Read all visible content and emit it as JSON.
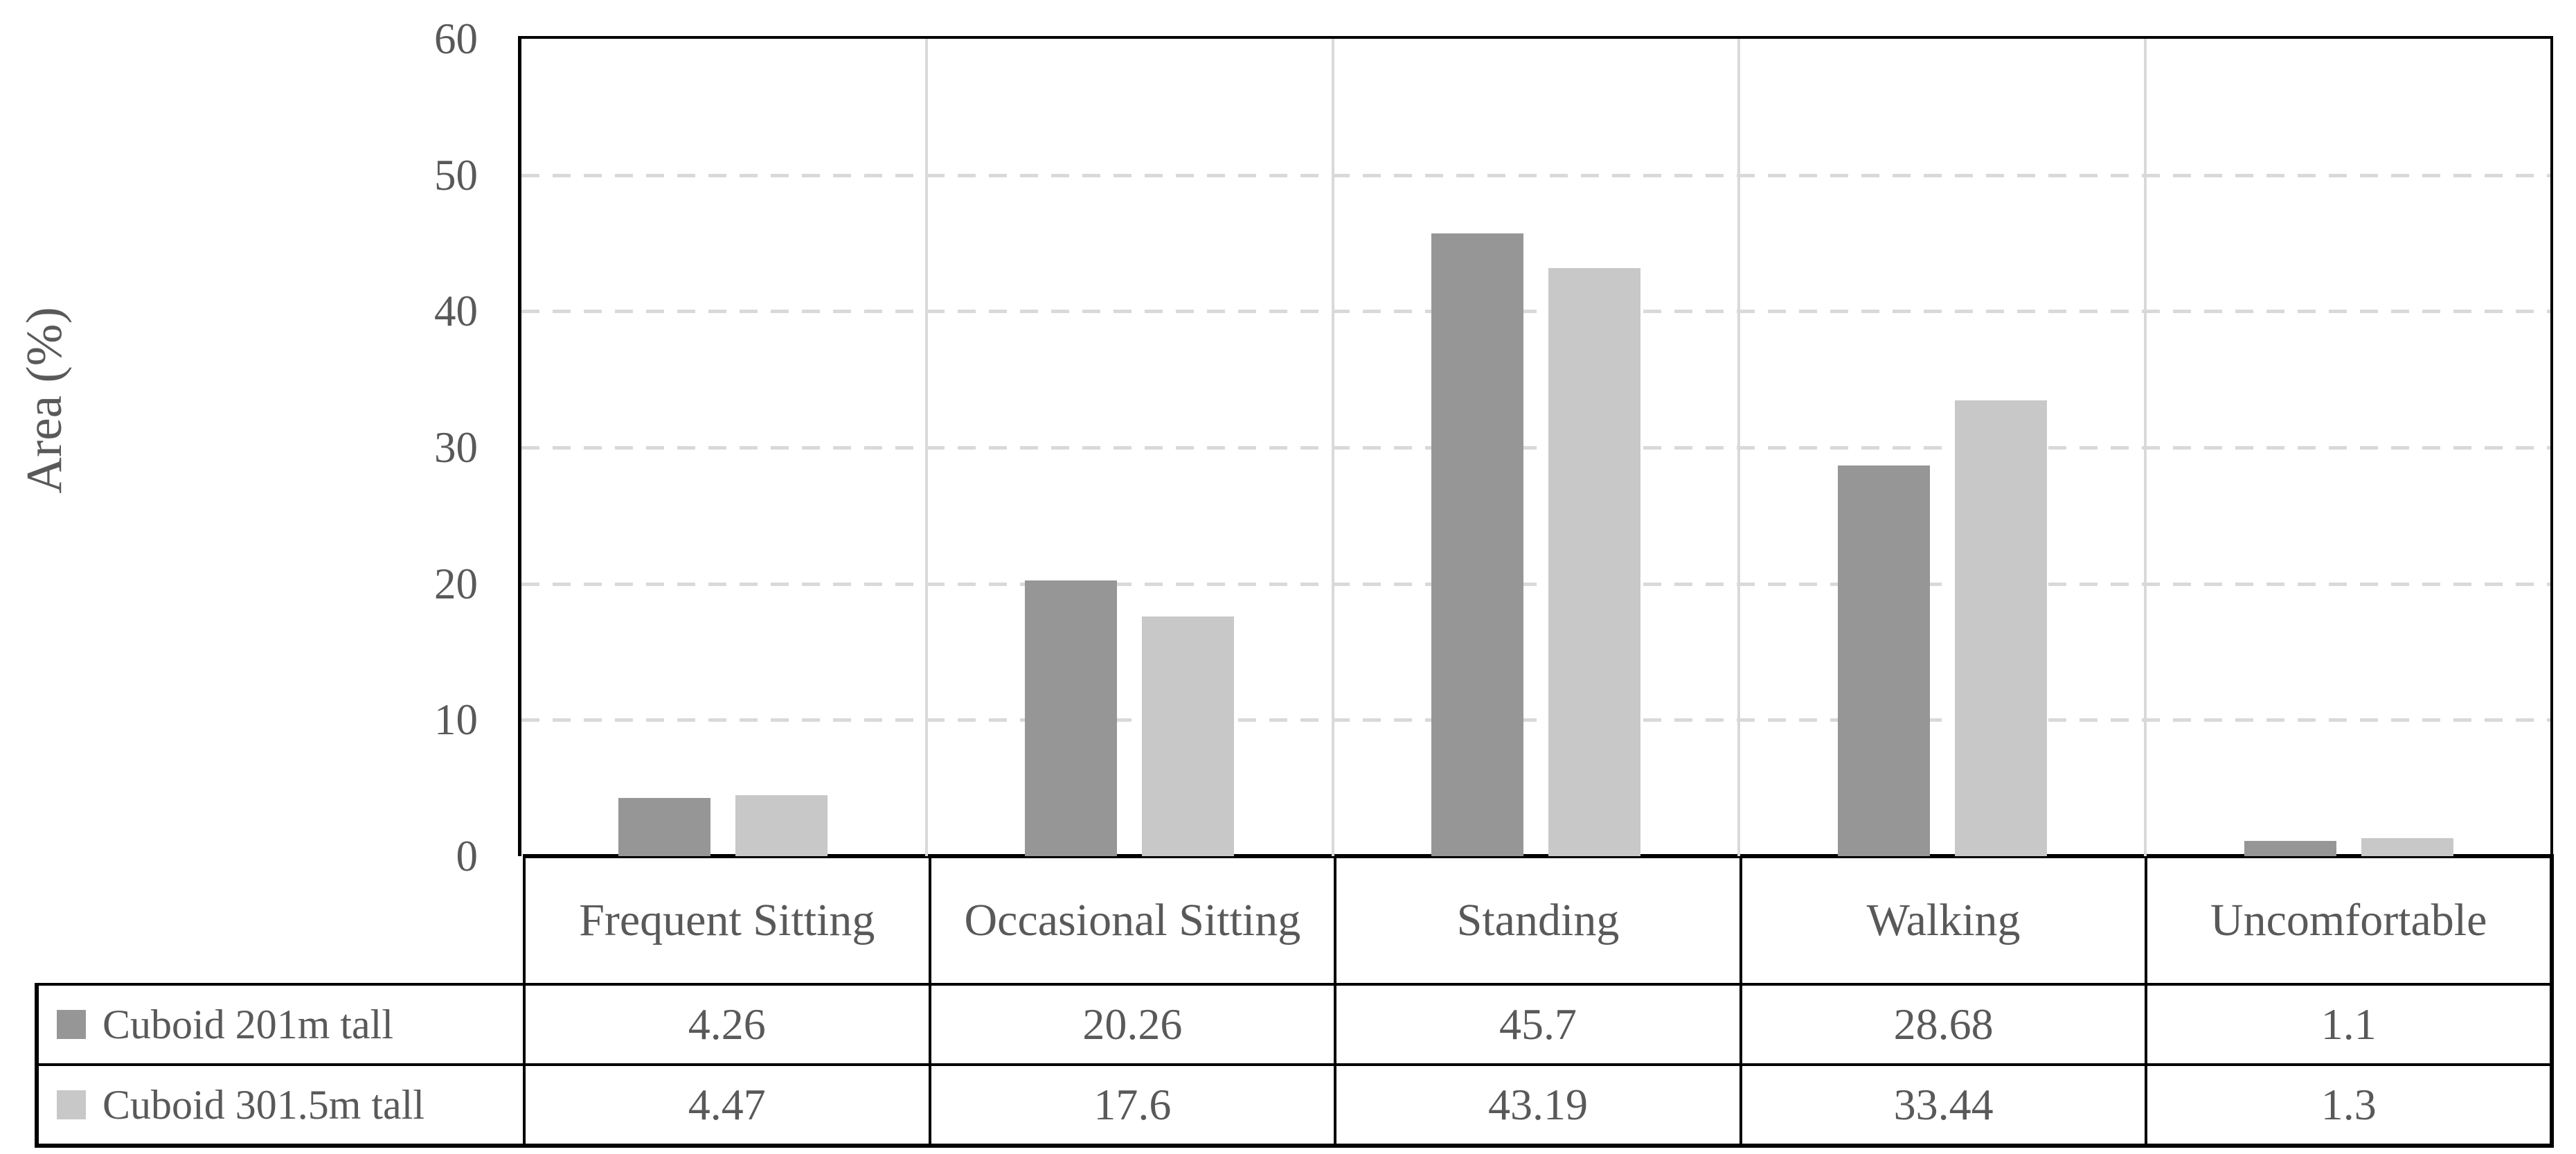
{
  "chart_data": {
    "type": "bar",
    "title": "",
    "xlabel": "",
    "ylabel": "Area (%)",
    "categories": [
      "Frequent Sitting",
      "Occasional Sitting",
      "Standing",
      "Walking",
      "Uncomfortable"
    ],
    "series": [
      {
        "name": "Cuboid 201m tall",
        "color": "#969696",
        "values": [
          4.26,
          20.26,
          45.7,
          28.68,
          1.1
        ]
      },
      {
        "name": "Cuboid 301.5m tall",
        "color": "#c8c8c8",
        "values": [
          4.47,
          17.6,
          43.19,
          33.44,
          1.3
        ]
      }
    ],
    "ylim": [
      0,
      60
    ],
    "yticks": [
      0,
      10,
      20,
      30,
      40,
      50,
      60
    ],
    "grid": {
      "horizontal": "dashed",
      "vertical": "solid",
      "color": "#d9d9d9"
    },
    "legend_position": "table-left-column",
    "axis_text_color": "#595959",
    "border_color": "#000000"
  }
}
